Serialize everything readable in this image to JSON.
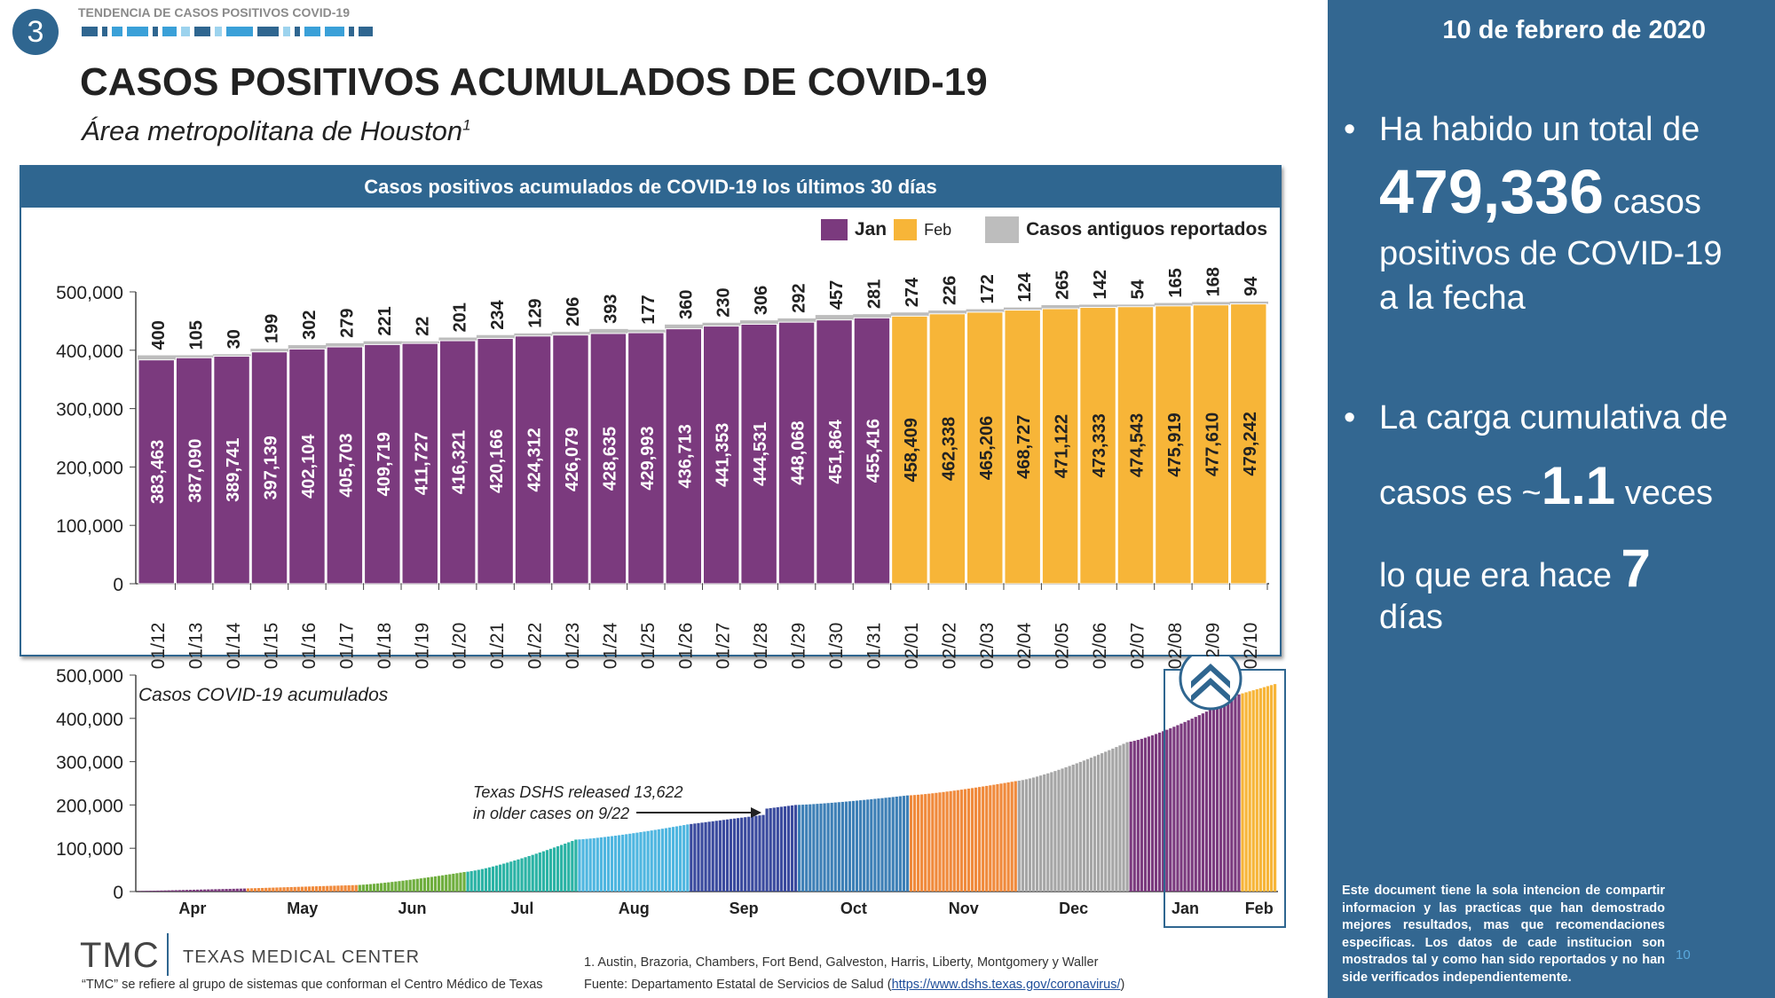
{
  "header": {
    "badge": "3",
    "kicker": "TENDENCIA DE CASOS POSITIVOS COVID-19",
    "title": "CASOS POSITIVOS ACUMULADOS DE COVID-19",
    "subtitle": "Área metropolitana de Houston",
    "subtitle_sup": "1"
  },
  "colors": {
    "jan": "#7b3a7e",
    "feb": "#f7b538",
    "old": "#bdbdbd",
    "brand": "#2f6690",
    "panel": "#336791"
  },
  "chart_data": [
    {
      "type": "bar",
      "title": "Casos positivos acumulados de COVID-19 los últimos 30 días",
      "legend": [
        {
          "name": "Jan",
          "color": "#7b3a7e"
        },
        {
          "name": "Feb",
          "color": "#f7b538"
        },
        {
          "name": "Casos antiguos reportados",
          "color": "#bdbdbd"
        }
      ],
      "legend_position": "top-right",
      "ylim": [
        0,
        500000
      ],
      "yticks": [
        "0",
        "100,000",
        "200,000",
        "300,000",
        "400,000",
        "500,000"
      ],
      "categories": [
        "01/12",
        "01/13",
        "01/14",
        "01/15",
        "01/16",
        "01/17",
        "01/18",
        "01/19",
        "01/20",
        "01/21",
        "01/22",
        "01/23",
        "01/24",
        "01/25",
        "01/26",
        "01/27",
        "01/28",
        "01/29",
        "01/30",
        "01/31",
        "02/01",
        "02/02",
        "02/03",
        "02/04",
        "02/05",
        "02/06",
        "02/07",
        "02/08",
        "02/09",
        "02/10"
      ],
      "values": [
        383463,
        387090,
        389741,
        397139,
        402104,
        405703,
        409719,
        411727,
        416321,
        420166,
        424312,
        426079,
        428635,
        429993,
        436713,
        441353,
        444531,
        448068,
        451864,
        455416,
        458409,
        462338,
        465206,
        468727,
        471122,
        473333,
        474543,
        475919,
        477610,
        479242
      ],
      "value_labels": [
        "383,463",
        "387,090",
        "389,741",
        "397,139",
        "402,104",
        "405,703",
        "409,719",
        "411,727",
        "416,321",
        "420,166",
        "424,312",
        "426,079",
        "428,635",
        "429,993",
        "436,713",
        "441,353",
        "444,531",
        "448,068",
        "451,864",
        "455,416",
        "458,409",
        "462,338",
        "465,206",
        "468,727",
        "471,122",
        "473,333",
        "474,543",
        "475,919",
        "477,610",
        "479,242"
      ],
      "old_cases": [
        400,
        105,
        30,
        199,
        302,
        279,
        221,
        22,
        201,
        234,
        129,
        206,
        393,
        177,
        360,
        230,
        306,
        292,
        457,
        281,
        274,
        226,
        172,
        124,
        265,
        142,
        54,
        165,
        168,
        94
      ]
    },
    {
      "type": "bar",
      "title": "Casos COVID-19 acumulados",
      "ylim": [
        0,
        500000
      ],
      "yticks": [
        "0",
        "100,000",
        "200,000",
        "300,000",
        "400,000",
        "500,000"
      ],
      "months": [
        "Apr",
        "May",
        "Jun",
        "Jul",
        "Aug",
        "Sep",
        "Oct",
        "Nov",
        "Dec",
        "Jan",
        "Feb"
      ],
      "month_colors": [
        "#7b3a7e",
        "#f08a3c",
        "#6fae3e",
        "#2bb3a5",
        "#4fb6e0",
        "#3a4a9e",
        "#3d7fb6",
        "#f08a3c",
        "#a6a6a6",
        "#7b3a7e",
        "#f7b538"
      ],
      "month_end_values": [
        7000,
        15000,
        45000,
        120000,
        155000,
        200000,
        222000,
        255000,
        345000,
        455416,
        479242
      ],
      "start_value": 1000,
      "annotation": [
        "Texas DSHS released 13,622",
        "in older cases on 9/22"
      ]
    }
  ],
  "sidebar": {
    "date": "10 de febrero de 2020",
    "b1": {
      "pre": "Ha habido un total de",
      "num": "479,336",
      "post1": " casos",
      "post2": "positivos de COVID-19",
      "post3": "a la fecha"
    },
    "b2": {
      "pre": "La carga cumulativa de",
      "casos": "casos es ~",
      "num": "1.1",
      "veces": " veces",
      "pre2": "lo que era hace ",
      "num2": "7",
      "dias": "días"
    },
    "disclaimer": "Este document tiene la sola intencion de compartir informacion y las practicas que han demostrado mejores resultados, mas que recomendaciones especificas. Los datos de cade institucion son mostrados tal y como han sido reportados y no han side verificados independientemente.",
    "page": "10"
  },
  "footer": {
    "tmc": "TMC",
    "tmc_name": "TEXAS MEDICAL CENTER",
    "tmc_note": "“TMC” se refiere al grupo de sistemas que conforman el Centro Médico de Texas",
    "note1": "1.     Austin, Brazoria, Chambers, Fort Bend, Galveston, Harris, Liberty, Montgomery y Waller",
    "source": "Fuente: Departamento Estatal de Servicios de Salud (",
    "source_link": "https://www.dshs.texas.gov/coronavirus/",
    "source_end": ")"
  }
}
